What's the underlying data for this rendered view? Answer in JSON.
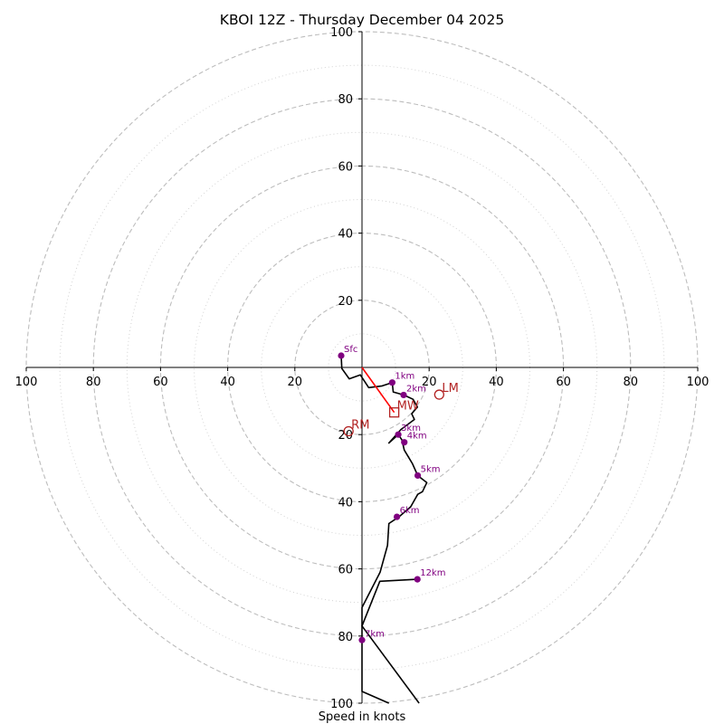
{
  "chart_data": {
    "type": "hodograph",
    "title": "KBOI 12Z - Thursday December 04 2025",
    "xlabel": "Speed in knots",
    "xlim": [
      -100,
      100
    ],
    "ylim": [
      -100,
      100
    ],
    "units": "knots",
    "major_rings": [
      20,
      40,
      60,
      80,
      100
    ],
    "minor_rings": [
      10,
      30,
      50,
      70,
      90
    ],
    "x_tick_labels": [
      "100",
      "80",
      "60",
      "40",
      "20",
      "20",
      "40",
      "60",
      "80",
      "100"
    ],
    "x_tick_values": [
      -100,
      -80,
      -60,
      -40,
      -20,
      20,
      40,
      60,
      80,
      100
    ],
    "y_tick_labels": [
      "100",
      "80",
      "60",
      "40",
      "20",
      "20",
      "40",
      "60",
      "80",
      "100"
    ],
    "y_tick_values": [
      100,
      80,
      60,
      40,
      20,
      -20,
      -40,
      -60,
      -80,
      -100
    ],
    "trace": [
      [
        -6.2,
        3.5
      ],
      [
        -6.0,
        -0.3
      ],
      [
        -3.8,
        -3.4
      ],
      [
        -0.5,
        -2.2
      ],
      [
        2.0,
        -6.0
      ],
      [
        6.0,
        -5.5
      ],
      [
        9.0,
        -4.5
      ],
      [
        9.3,
        -7.3
      ],
      [
        12.4,
        -8.2
      ],
      [
        15.2,
        -9.5
      ],
      [
        16.5,
        -11.8
      ],
      [
        14.8,
        -13.8
      ],
      [
        15.6,
        -15.5
      ],
      [
        11.6,
        -18.5
      ],
      [
        8.0,
        -22.5
      ],
      [
        10.8,
        -20.0
      ],
      [
        11.9,
        -21.6
      ],
      [
        12.6,
        -24.6
      ],
      [
        15.0,
        -28.6
      ],
      [
        16.6,
        -32.2
      ],
      [
        19.3,
        -34.3
      ],
      [
        18.0,
        -37.0
      ],
      [
        16.6,
        -37.8
      ],
      [
        14.5,
        -41.5
      ],
      [
        11.0,
        -44.5
      ],
      [
        8.0,
        -46.5
      ],
      [
        7.6,
        -53.0
      ],
      [
        5.4,
        -61.0
      ],
      [
        0.0,
        -71.5
      ],
      [
        0.0,
        -81.2
      ],
      [
        0.0,
        -96.5
      ],
      [
        8.0,
        -100.0
      ]
    ],
    "trace_upper": [
      [
        16.5,
        -63.1
      ],
      [
        5.3,
        -63.7
      ],
      [
        0.0,
        -77.0
      ],
      [
        17.0,
        -100.0
      ]
    ],
    "bunkers_vector": {
      "from": [
        0.0,
        0.0
      ],
      "to": [
        9.6,
        -13.4
      ],
      "color": "#ff0000"
    },
    "height_markers": [
      {
        "label": "Sfc",
        "u": -6.2,
        "v": 3.5
      },
      {
        "label": "1km",
        "u": 9.0,
        "v": -4.5
      },
      {
        "label": "2km",
        "u": 12.4,
        "v": -8.2
      },
      {
        "label": "3km",
        "u": 10.8,
        "v": -20.0
      },
      {
        "label": "4km",
        "u": 12.6,
        "v": -22.3
      },
      {
        "label": "5km",
        "u": 16.6,
        "v": -32.2
      },
      {
        "label": "6km",
        "u": 10.4,
        "v": -44.5
      },
      {
        "label": "7km",
        "u": 0.0,
        "v": -81.2
      },
      {
        "label": "12km",
        "u": 16.5,
        "v": -63.1
      }
    ],
    "storm_motions": [
      {
        "label": "MW",
        "marker": "square",
        "u": 9.6,
        "v": -13.4,
        "color": "#b22222"
      },
      {
        "label": "LM",
        "marker": "circle",
        "u": 23.0,
        "v": -8.1,
        "color": "#b22222"
      },
      {
        "label": "RM",
        "marker": "circle",
        "u": -4.0,
        "v": -19.0,
        "color": "#b22222"
      }
    ]
  }
}
